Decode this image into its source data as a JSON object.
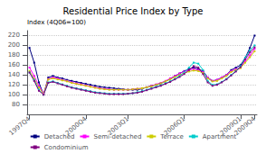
{
  "chart_data": {
    "type": "line",
    "title": "Residential Price Index by Type",
    "ylabel": "Index (4Q06=100)",
    "categories": [
      "1997Q4",
      null,
      null,
      null,
      null,
      null,
      null,
      null,
      null,
      null,
      null,
      null,
      "2000Q4",
      null,
      null,
      null,
      null,
      null,
      null,
      null,
      null,
      "2003Q1",
      null,
      null,
      null,
      null,
      null,
      null,
      null,
      null,
      null,
      null,
      null,
      "2006Q1",
      null,
      null,
      null,
      null,
      null,
      null,
      null,
      null,
      null,
      null,
      null,
      "2009Q1",
      null,
      null,
      "2009Q4"
    ],
    "series": [
      {
        "name": "Detached",
        "color": "#000080",
        "marker": "square",
        "values": [
          195,
          165,
          125,
          100,
          135,
          138,
          135,
          133,
          130,
          128,
          126,
          124,
          122,
          120,
          118,
          116,
          115,
          114,
          113,
          112,
          111,
          110,
          110,
          110,
          112,
          115,
          118,
          120,
          123,
          127,
          132,
          138,
          143,
          148,
          152,
          155,
          152,
          148,
          135,
          128,
          130,
          135,
          140,
          150,
          155,
          160,
          175,
          195,
          220
        ]
      },
      {
        "name": "Semi-detached",
        "color": "#FF00FF",
        "marker": "square",
        "values": [
          155,
          138,
          118,
          102,
          132,
          135,
          133,
          130,
          128,
          125,
          123,
          121,
          119,
          117,
          115,
          113,
          112,
          111,
          110,
          110,
          110,
          110,
          111,
          112,
          113,
          115,
          118,
          121,
          124,
          128,
          133,
          138,
          143,
          147,
          150,
          152,
          150,
          146,
          135,
          128,
          130,
          135,
          140,
          148,
          152,
          156,
          168,
          180,
          193
        ]
      },
      {
        "name": "Terrace",
        "color": "#CCCC00",
        "marker": "square",
        "values": [
          148,
          132,
          115,
          101,
          131,
          133,
          131,
          129,
          127,
          124,
          122,
          120,
          118,
          116,
          114,
          112,
          111,
          110,
          110,
          110,
          110,
          110,
          111,
          112,
          113,
          115,
          117,
          120,
          123,
          127,
          131,
          136,
          140,
          144,
          147,
          149,
          148,
          144,
          133,
          127,
          128,
          133,
          138,
          146,
          150,
          154,
          165,
          176,
          188
        ]
      },
      {
        "name": "Apartment",
        "color": "#00CCCC",
        "marker": "square",
        "values": [
          145,
          130,
          110,
          100,
          125,
          127,
          124,
          121,
          118,
          115,
          113,
          111,
          109,
          107,
          105,
          104,
          103,
          102,
          102,
          102,
          102,
          102,
          103,
          105,
          107,
          110,
          113,
          116,
          119,
          123,
          127,
          132,
          138,
          145,
          155,
          165,
          163,
          150,
          128,
          120,
          121,
          126,
          132,
          140,
          148,
          158,
          175,
          190,
          200
        ]
      },
      {
        "name": "Condominium",
        "color": "#800080",
        "marker": "square",
        "values": [
          145,
          128,
          108,
          100,
          124,
          126,
          123,
          120,
          117,
          114,
          112,
          110,
          108,
          106,
          104,
          103,
          102,
          101,
          101,
          101,
          101,
          102,
          103,
          104,
          106,
          109,
          112,
          115,
          118,
          122,
          126,
          131,
          136,
          142,
          150,
          158,
          155,
          142,
          125,
          118,
          120,
          125,
          131,
          139,
          147,
          156,
          172,
          186,
          196
        ]
      }
    ],
    "ylim": [
      60,
      230
    ],
    "yticks": [
      80,
      100,
      120,
      140,
      160,
      180,
      200,
      220
    ],
    "grid": true,
    "legend": "bottom"
  }
}
